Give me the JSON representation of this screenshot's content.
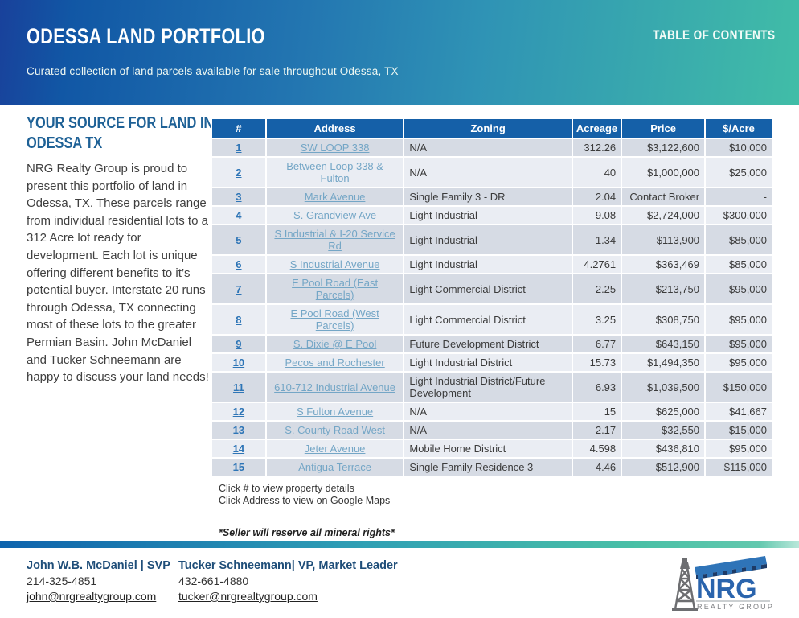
{
  "header": {
    "title": "ODESSA LAND PORTFOLIO",
    "toc_label": "TABLE OF CONTENTS",
    "subtitle": "Curated collection of land parcels available for sale throughout Odessa, TX"
  },
  "sidebar": {
    "heading_line1": "YOUR SOURCE FOR LAND IN",
    "heading_line2": "ODESSA TX",
    "paragraph": "NRG Realty Group is proud to present this portfolio of land in Odessa, TX. These parcels range from individual residential lots to a 312 Acre lot ready for development. Each lot is unique offering different benefits to it’s potential buyer. Interstate 20 runs through Odessa, TX connecting most of these lots to the greater Permian Basin. John McDaniel and Tucker Schneemann are happy to discuss your land needs!"
  },
  "table": {
    "columns": [
      "#",
      "Address",
      "Zoning",
      "Acreage",
      "Price",
      "$/Acre"
    ],
    "rows": [
      {
        "num": "1",
        "address": "SW LOOP 338",
        "zoning": "N/A",
        "acreage": "312.26",
        "price": "$3,122,600",
        "per_acre": "$10,000"
      },
      {
        "num": "2",
        "address": "Between Loop 338 & Fulton",
        "zoning": "N/A",
        "acreage": "40",
        "price": "$1,000,000",
        "per_acre": "$25,000"
      },
      {
        "num": "3",
        "address": "Mark Avenue",
        "zoning": "Single Family 3 - DR",
        "acreage": "2.04",
        "price": "Contact Broker",
        "per_acre": "-"
      },
      {
        "num": "4",
        "address": "S. Grandview Ave",
        "zoning": "Light Industrial",
        "acreage": "9.08",
        "price": "$2,724,000",
        "per_acre": "$300,000"
      },
      {
        "num": "5",
        "address": "S Industrial & I-20 Service Rd",
        "zoning": "Light Industrial",
        "acreage": "1.34",
        "price": "$113,900",
        "per_acre": "$85,000"
      },
      {
        "num": "6",
        "address": "S Industrial Avenue",
        "zoning": "Light Industrial",
        "acreage": "4.2761",
        "price": "$363,469",
        "per_acre": "$85,000"
      },
      {
        "num": "7",
        "address": "E Pool Road (East Parcels)",
        "zoning": "Light Commercial District",
        "acreage": "2.25",
        "price": "$213,750",
        "per_acre": "$95,000"
      },
      {
        "num": "8",
        "address": "E Pool Road (West Parcels)",
        "zoning": "Light Commercial District",
        "acreage": "3.25",
        "price": "$308,750",
        "per_acre": "$95,000"
      },
      {
        "num": "9",
        "address": "S. Dixie @ E Pool",
        "zoning": "Future Development District",
        "acreage": "6.77",
        "price": "$643,150",
        "per_acre": "$95,000"
      },
      {
        "num": "10",
        "address": "Pecos and Rochester",
        "zoning": "Light Industrial District",
        "acreage": "15.73",
        "price": "$1,494,350",
        "per_acre": "$95,000"
      },
      {
        "num": "11",
        "address": "610-712 Industrial Avenue",
        "zoning": "Light Industrial District/Future Development",
        "acreage": "6.93",
        "price": "$1,039,500",
        "per_acre": "$150,000"
      },
      {
        "num": "12",
        "address": "S Fulton Avenue",
        "zoning": "N/A",
        "acreage": "15",
        "price": "$625,000",
        "per_acre": "$41,667"
      },
      {
        "num": "13",
        "address": "S. County Road West",
        "zoning": "N/A",
        "acreage": "2.17",
        "price": "$32,550",
        "per_acre": "$15,000"
      },
      {
        "num": "14",
        "address": "Jeter Avenue",
        "zoning": "Mobile Home District",
        "acreage": "4.598",
        "price": "$436,810",
        "per_acre": "$95,000"
      },
      {
        "num": "15",
        "address": "Antigua Terrace",
        "zoning": "Single Family Residence 3",
        "acreage": "4.46",
        "price": "$512,900",
        "per_acre": "$115,000"
      }
    ]
  },
  "notes": {
    "note1": "Click # to view property details",
    "note2": "Click Address to view on Google Maps",
    "disclaimer": "*Seller will reserve all mineral rights*"
  },
  "footer": {
    "contacts": [
      {
        "name": "John W.B. McDaniel | SVP",
        "phone": "214-325-4851",
        "email": "john@nrgrealtygroup.com"
      },
      {
        "name": "Tucker Schneemann| VP, Market Leader",
        "phone": "432-661-4880",
        "email": "tucker@nrgrealtygroup.com"
      }
    ],
    "logo": {
      "text": "NRG",
      "subtext": "REALTY GROUP"
    }
  },
  "colors": {
    "header_gradient_start": "#1157a5",
    "header_gradient_end": "#41bda7",
    "table_header_bg": "#1560a8",
    "row_dark": "#d6dbe4",
    "row_light": "#eaedf3",
    "num_link": "#2e75b6",
    "addr_link": "#74a6c6",
    "accent_blue": "#1f4e79"
  }
}
